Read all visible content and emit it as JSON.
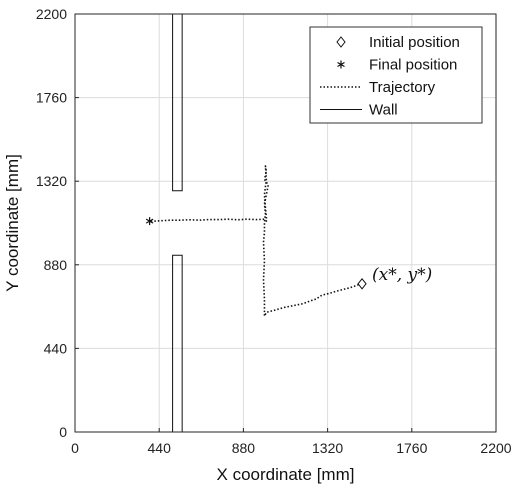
{
  "chart_data": {
    "type": "line",
    "xlabel": "X coordinate [mm]",
    "ylabel": "Y coordinate [mm]",
    "xlim": [
      0,
      2200
    ],
    "ylim": [
      0,
      2200
    ],
    "xticks": [
      0,
      440,
      880,
      1320,
      1760,
      2200
    ],
    "yticks": [
      0,
      440,
      880,
      1320,
      1760,
      2200
    ],
    "grid": true,
    "legend_position": "top-right",
    "legend": [
      {
        "label": "Initial position",
        "marker": "diamond"
      },
      {
        "label": "Final position",
        "marker": "asterisk"
      },
      {
        "label": "Trajectory",
        "style": "dotted"
      },
      {
        "label": "Wall",
        "style": "solid"
      }
    ],
    "annotation": {
      "text": "(x*, y*)",
      "x": 1500,
      "y": 780
    },
    "initial_position": {
      "x": 1500,
      "y": 780
    },
    "final_position": {
      "x": 390,
      "y": 1110
    },
    "trajectory": {
      "x": [
        1500,
        1480,
        1440,
        1380,
        1330,
        1290,
        1260,
        1230,
        1190,
        1140,
        1090,
        1040,
        1000,
        990,
        990,
        985,
        990,
        985,
        990,
        990,
        995,
        990,
        1000,
        1010,
        990,
        1000,
        995,
        1000,
        990,
        995,
        1000,
        1000,
        990,
        950,
        900,
        850,
        800,
        750,
        700,
        650,
        600,
        550,
        500,
        450,
        420,
        390
      ],
      "y": [
        780,
        775,
        760,
        745,
        730,
        720,
        700,
        690,
        675,
        665,
        655,
        640,
        630,
        610,
        700,
        800,
        900,
        1000,
        1050,
        1100,
        1150,
        1200,
        1250,
        1300,
        1330,
        1370,
        1400,
        1330,
        1250,
        1180,
        1130,
        1110,
        1120,
        1118,
        1120,
        1117,
        1120,
        1118,
        1118,
        1115,
        1117,
        1115,
        1115,
        1112,
        1110,
        1110
      ]
    },
    "walls": [
      {
        "x": [
          510,
          560,
          560,
          510,
          510
        ],
        "y": [
          2200,
          2200,
          1270,
          1270,
          2200
        ]
      },
      {
        "x": [
          510,
          560,
          560,
          510,
          510
        ],
        "y": [
          0,
          0,
          930,
          930,
          0
        ]
      }
    ]
  }
}
